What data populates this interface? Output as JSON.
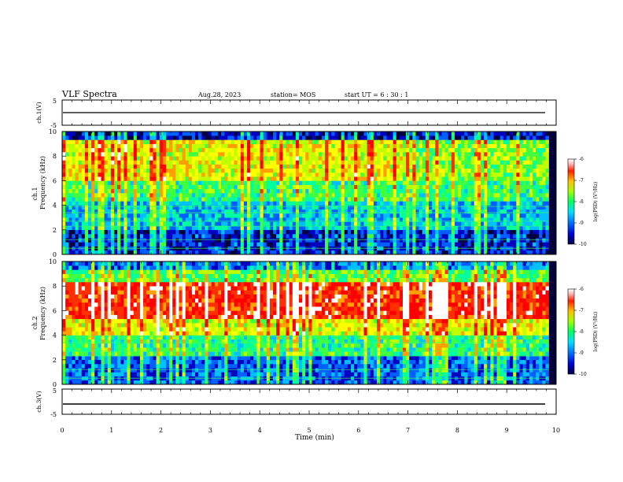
{
  "header": {
    "title": "VLF Spectra",
    "date": "Aug.28, 2023",
    "station": "station= MOS",
    "start": "start  UT =   6 : 30 : 1"
  },
  "chart_data": [
    {
      "type": "line",
      "panel": "waveform-ch1",
      "ylabel": "ch.1(V)",
      "ylim": [
        -5,
        5
      ],
      "yticks": [
        "5",
        "-5"
      ],
      "x": [
        0,
        9.85
      ],
      "values": [
        0,
        0
      ]
    },
    {
      "type": "heatmap",
      "panel": "spectrogram-ch1",
      "ylabel": "ch.1\nFrequency (kHz)",
      "ylim": [
        0,
        10
      ],
      "yticks": [
        "0",
        "2",
        "4",
        "6",
        "8",
        "10"
      ],
      "xlim": [
        0,
        9.85
      ],
      "colorbar": {
        "label": "log(PSD) (V²/Hz)",
        "range": [
          -10,
          -6
        ],
        "ticks": [
          "-6",
          "-7",
          "-8",
          "-9",
          "-10"
        ]
      }
    },
    {
      "type": "heatmap",
      "panel": "spectrogram-ch2",
      "ylabel": "ch.2\nFrequency (kHz)",
      "ylim": [
        0,
        10
      ],
      "yticks": [
        "0",
        "2",
        "4",
        "6",
        "8",
        "10"
      ],
      "xlim": [
        0,
        9.85
      ],
      "colorbar": {
        "label": "log(PSD) (V²/Hz)",
        "range": [
          -10,
          -6
        ],
        "ticks": [
          "-6",
          "-7",
          "-8",
          "-9",
          "-10"
        ]
      }
    },
    {
      "type": "line",
      "panel": "waveform-ch3",
      "ylabel": "ch.3(V)",
      "ylim": [
        -5,
        5
      ],
      "yticks": [
        "5",
        "-5"
      ],
      "x": [
        0,
        9.85
      ],
      "values": [
        -1,
        -1
      ]
    }
  ],
  "xaxis": {
    "label": "Time  (min)",
    "range": [
      0,
      10
    ],
    "ticks": [
      "0",
      "1",
      "2",
      "3",
      "4",
      "5",
      "6",
      "7",
      "8",
      "9",
      "10"
    ]
  },
  "colormap": [
    "#000040",
    "#0000c0",
    "#0060ff",
    "#00c0ff",
    "#00ffa0",
    "#40ff40",
    "#c0ff00",
    "#ffff00",
    "#ffa000",
    "#ff3000",
    "#ff0000",
    "#ffffff"
  ]
}
